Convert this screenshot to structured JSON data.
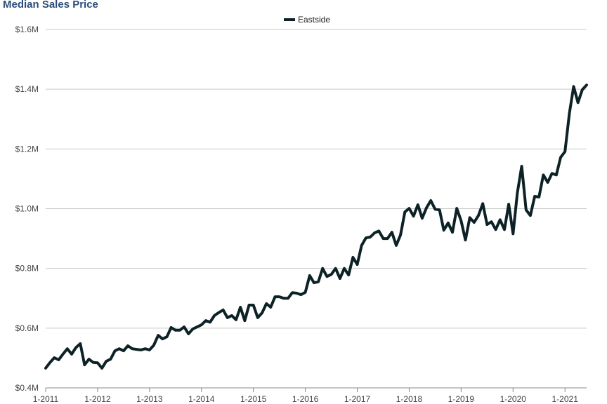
{
  "chart_data": {
    "type": "line",
    "title": "Median Sales Price",
    "xlabel": "",
    "ylabel": "",
    "legend_position": "top-center",
    "grid": true,
    "line_color": "#0d2226",
    "title_color": "#2b4d7c",
    "ylim": [
      0.4,
      1.6
    ],
    "y_ticks": [
      "$0.4M",
      "$0.6M",
      "$0.8M",
      "$1.0M",
      "$1.2M",
      "$1.4M",
      "$1.6M"
    ],
    "y_tick_values": [
      0.4,
      0.6,
      0.8,
      1.0,
      1.2,
      1.4,
      1.6
    ],
    "x_ticks": [
      "1-2011",
      "1-2012",
      "1-2013",
      "1-2014",
      "1-2015",
      "1-2016",
      "1-2017",
      "1-2018",
      "1-2019",
      "1-2020",
      "1-2021"
    ],
    "x_start": "1-2011",
    "x_end": "6-2021",
    "series": [
      {
        "name": "Eastside",
        "unit": "$M",
        "values": [
          0.466,
          0.485,
          0.501,
          0.494,
          0.513,
          0.531,
          0.513,
          0.535,
          0.548,
          0.477,
          0.496,
          0.485,
          0.484,
          0.466,
          0.489,
          0.496,
          0.524,
          0.531,
          0.524,
          0.541,
          0.531,
          0.529,
          0.527,
          0.531,
          0.527,
          0.543,
          0.576,
          0.564,
          0.571,
          0.602,
          0.593,
          0.593,
          0.604,
          0.581,
          0.597,
          0.604,
          0.611,
          0.625,
          0.62,
          0.642,
          0.652,
          0.661,
          0.635,
          0.642,
          0.628,
          0.67,
          0.625,
          0.677,
          0.677,
          0.635,
          0.651,
          0.682,
          0.67,
          0.705,
          0.705,
          0.7,
          0.7,
          0.719,
          0.717,
          0.712,
          0.72,
          0.776,
          0.752,
          0.755,
          0.8,
          0.773,
          0.78,
          0.8,
          0.766,
          0.8,
          0.778,
          0.837,
          0.813,
          0.877,
          0.902,
          0.905,
          0.919,
          0.925,
          0.9,
          0.9,
          0.921,
          0.877,
          0.912,
          0.989,
          1.001,
          0.975,
          1.013,
          0.968,
          1.003,
          1.027,
          0.998,
          0.996,
          0.928,
          0.952,
          0.921,
          1.001,
          0.959,
          0.895,
          0.97,
          0.954,
          0.977,
          1.017,
          0.947,
          0.956,
          0.93,
          0.963,
          0.93,
          1.015,
          0.916,
          1.053,
          1.142,
          0.996,
          0.977,
          1.041,
          1.039,
          1.113,
          1.088,
          1.118,
          1.113,
          1.172,
          1.191,
          1.318,
          1.409,
          1.355,
          1.398,
          1.414
        ]
      }
    ]
  }
}
